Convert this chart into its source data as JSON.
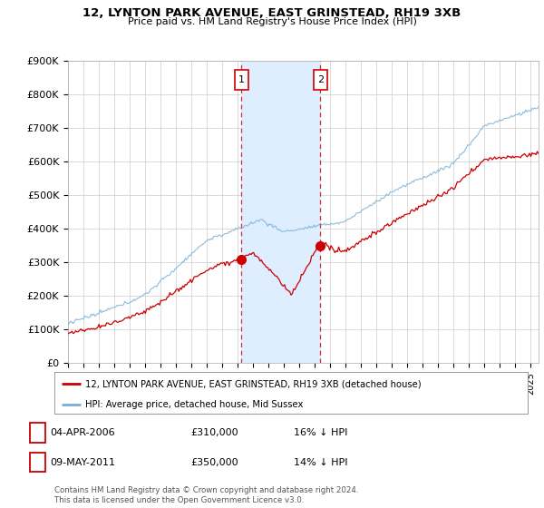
{
  "title": "12, LYNTON PARK AVENUE, EAST GRINSTEAD, RH19 3XB",
  "subtitle": "Price paid vs. HM Land Registry's House Price Index (HPI)",
  "ylim": [
    0,
    900000
  ],
  "yticks": [
    0,
    100000,
    200000,
    300000,
    400000,
    500000,
    600000,
    700000,
    800000,
    900000
  ],
  "ytick_labels": [
    "£0",
    "£100K",
    "£200K",
    "£300K",
    "£400K",
    "£500K",
    "£600K",
    "£700K",
    "£800K",
    "£900K"
  ],
  "xlim_start": 1995.0,
  "xlim_end": 2025.5,
  "transaction1_x": 2006.25,
  "transaction1_y": 310000,
  "transaction1_label": "04-APR-2006",
  "transaction1_price": "£310,000",
  "transaction1_hpi": "16% ↓ HPI",
  "transaction2_x": 2011.36,
  "transaction2_y": 350000,
  "transaction2_label": "09-MAY-2011",
  "transaction2_price": "£350,000",
  "transaction2_hpi": "14% ↓ HPI",
  "red_line_color": "#cc0000",
  "blue_line_color": "#7ab0d4",
  "shade_color": "#deeeff",
  "vline_color": "#cc3333",
  "legend_line1": "12, LYNTON PARK AVENUE, EAST GRINSTEAD, RH19 3XB (detached house)",
  "legend_line2": "HPI: Average price, detached house, Mid Sussex",
  "footnote": "Contains HM Land Registry data © Crown copyright and database right 2024.\nThis data is licensed under the Open Government Licence v3.0.",
  "background_color": "#ffffff",
  "plot_bg_color": "#ffffff",
  "grid_color": "#cccccc"
}
